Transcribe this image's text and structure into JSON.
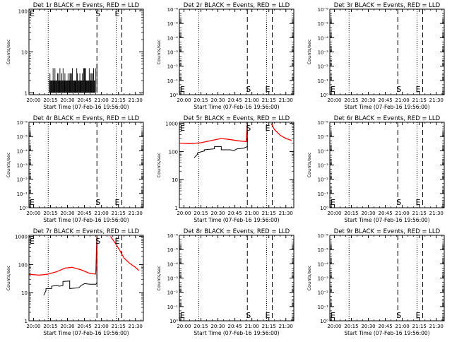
{
  "chart_data": [
    {
      "type": "line",
      "title": "Det 1r BLACK = Events, RED = LLD",
      "xlabel": "Start Time (07-Feb-16 19:56:00)",
      "ylabel": "Counts/sec",
      "xlim": [
        "19:56",
        "21:37"
      ],
      "x_ticks": [
        "20:00",
        "20:15",
        "20:30",
        "20:45",
        "21:00",
        "21:15",
        "21:30"
      ],
      "yscale": "log",
      "ylim": [
        0.9,
        110
      ],
      "y_ticks": [
        {
          "v": 1,
          "label": "1"
        },
        {
          "v": 10,
          "label": "10"
        },
        {
          "v": 100,
          "label": "100"
        }
      ],
      "markers": [
        {
          "label": "E",
          "time": "19:56",
          "style": "dotted"
        },
        {
          "label": "",
          "time": "20:13",
          "style": "dotted"
        },
        {
          "label": "S",
          "time": "20:56",
          "style": "dashed"
        },
        {
          "label": "E",
          "time": "21:13",
          "style": "dotted"
        },
        {
          "label": "",
          "time": "21:18",
          "style": "dashed"
        }
      ],
      "series": [
        {
          "color": "#000000",
          "style": "spiky",
          "x": [
            "20:14",
            "20:25",
            "20:40",
            "20:55",
            "20:56"
          ],
          "y": [
            2,
            2.5,
            2,
            2.5,
            5
          ],
          "spike_lo": 1,
          "spike_hi": 4
        }
      ]
    },
    {
      "type": "line",
      "title": "Det 2r BLACK = Events, RED = LLD",
      "xlabel": "Start Time (07-Feb-16 19:56:00)",
      "ylabel": "Counts/sec",
      "xlim": [
        "19:56",
        "21:37"
      ],
      "x_ticks": [
        "20:00",
        "20:15",
        "20:30",
        "20:45",
        "21:00",
        "21:15",
        "21:30"
      ],
      "yscale": "log",
      "ylim": [
        1,
        1e-06
      ],
      "y_ticks": [
        {
          "v": 1,
          "label": "10⁰"
        },
        {
          "v": 0.1,
          "label": "10⁻¹"
        },
        {
          "v": 0.01,
          "label": "10⁻²"
        },
        {
          "v": 0.001,
          "label": "10⁻³"
        },
        {
          "v": 0.0001,
          "label": "10⁻⁴"
        },
        {
          "v": 1e-05,
          "label": "10⁻⁵"
        },
        {
          "v": 1e-06,
          "label": "10⁻⁶"
        }
      ],
      "markers": [
        {
          "label": "E",
          "time": "19:56",
          "style": "dotted"
        },
        {
          "label": "",
          "time": "20:13",
          "style": "dotted"
        },
        {
          "label": "S",
          "time": "20:56",
          "style": "dashed"
        },
        {
          "label": "E",
          "time": "21:13",
          "style": "dotted"
        },
        {
          "label": "",
          "time": "21:18",
          "style": "dashed"
        }
      ],
      "series": []
    },
    {
      "type": "line",
      "title": "Det 3r BLACK = Events, RED = LLD",
      "xlabel": "Start Time (07-Feb-16 19:56:00)",
      "ylabel": "Counts/sec",
      "xlim": [
        "19:56",
        "21:37"
      ],
      "x_ticks": [
        "20:00",
        "20:15",
        "20:30",
        "20:45",
        "21:00",
        "21:15",
        "21:30"
      ],
      "yscale": "log",
      "ylim": [
        1,
        1e-06
      ],
      "y_ticks": [
        {
          "v": 1,
          "label": "10⁰"
        },
        {
          "v": 0.1,
          "label": "10⁻¹"
        },
        {
          "v": 0.01,
          "label": "10⁻²"
        },
        {
          "v": 0.001,
          "label": "10⁻³"
        },
        {
          "v": 0.0001,
          "label": "10⁻⁴"
        },
        {
          "v": 1e-05,
          "label": "10⁻⁵"
        },
        {
          "v": 1e-06,
          "label": "10⁻⁶"
        }
      ],
      "markers": [
        {
          "label": "E",
          "time": "19:56",
          "style": "dotted"
        },
        {
          "label": "",
          "time": "20:13",
          "style": "dotted"
        },
        {
          "label": "S",
          "time": "20:56",
          "style": "dashed"
        },
        {
          "label": "E",
          "time": "21:13",
          "style": "dotted"
        },
        {
          "label": "",
          "time": "21:18",
          "style": "dashed"
        }
      ],
      "series": []
    },
    {
      "type": "line",
      "title": "Det 4r BLACK = Events, RED = LLD",
      "xlabel": "Start Time (07-Feb-16 19:56:00)",
      "ylabel": "Counts/sec",
      "xlim": [
        "19:56",
        "21:37"
      ],
      "x_ticks": [
        "20:00",
        "20:15",
        "20:30",
        "20:45",
        "21:00",
        "21:15",
        "21:30"
      ],
      "yscale": "log",
      "ylim": [
        1,
        1e-06
      ],
      "y_ticks": [
        {
          "v": 1,
          "label": "10⁰"
        },
        {
          "v": 0.1,
          "label": "10⁻¹"
        },
        {
          "v": 0.01,
          "label": "10⁻²"
        },
        {
          "v": 0.001,
          "label": "10⁻³"
        },
        {
          "v": 0.0001,
          "label": "10⁻⁴"
        },
        {
          "v": 1e-05,
          "label": "10⁻⁵"
        },
        {
          "v": 1e-06,
          "label": "10⁻⁶"
        }
      ],
      "markers": [
        {
          "label": "E",
          "time": "19:56",
          "style": "dotted"
        },
        {
          "label": "",
          "time": "20:13",
          "style": "dotted"
        },
        {
          "label": "S",
          "time": "20:56",
          "style": "dashed"
        },
        {
          "label": "E",
          "time": "21:13",
          "style": "dotted"
        },
        {
          "label": "",
          "time": "21:18",
          "style": "dashed"
        }
      ],
      "series": []
    },
    {
      "type": "line",
      "title": "Det 5r BLACK = Events, RED = LLD",
      "xlabel": "Start Time (07-Feb-16 19:56:00)",
      "ylabel": "Counts/sec",
      "xlim": [
        "19:56",
        "21:37"
      ],
      "x_ticks": [
        "20:00",
        "20:15",
        "20:30",
        "20:45",
        "21:00",
        "21:15",
        "21:30"
      ],
      "yscale": "log",
      "ylim": [
        1,
        1100
      ],
      "y_ticks": [
        {
          "v": 1,
          "label": "1"
        },
        {
          "v": 10,
          "label": "10"
        },
        {
          "v": 100,
          "label": "100"
        },
        {
          "v": 1000,
          "label": "1000"
        }
      ],
      "markers": [
        {
          "label": "E",
          "time": "19:56",
          "style": "dotted"
        },
        {
          "label": "",
          "time": "20:13",
          "style": "dotted"
        },
        {
          "label": "S",
          "time": "20:56",
          "style": "dashed"
        },
        {
          "label": "E",
          "time": "21:13",
          "style": "dotted"
        },
        {
          "label": "",
          "time": "21:18",
          "style": "dashed"
        }
      ],
      "series": [
        {
          "color": "#ff0000",
          "style": "line",
          "x": [
            "19:56",
            "20:05",
            "20:15",
            "20:25",
            "20:33",
            "20:40",
            "20:48",
            "20:55",
            "20:56"
          ],
          "y": [
            200,
            190,
            205,
            250,
            290,
            270,
            240,
            225,
            1000
          ]
        },
        {
          "color": "#ff0000",
          "style": "line",
          "x": [
            "21:17",
            "21:20",
            "21:25",
            "21:30",
            "21:35"
          ],
          "y": [
            1000,
            600,
            380,
            290,
            250
          ]
        },
        {
          "color": "#000000",
          "style": "line",
          "x": [
            "20:09",
            "20:12",
            "20:12",
            "20:18",
            "20:18",
            "20:27",
            "20:27",
            "20:33",
            "20:33",
            "20:41",
            "20:44",
            "20:47",
            "20:50",
            "20:53",
            "20:56",
            "20:56"
          ],
          "y": [
            60,
            80,
            90,
            105,
            115,
            125,
            150,
            150,
            115,
            115,
            108,
            125,
            128,
            132,
            150,
            1000
          ]
        }
      ]
    },
    {
      "type": "line",
      "title": "Det 6r BLACK = Events, RED = LLD",
      "xlabel": "Start Time (07-Feb-16 19:56:00)",
      "ylabel": "Counts/sec",
      "xlim": [
        "19:56",
        "21:37"
      ],
      "x_ticks": [
        "20:00",
        "20:15",
        "20:30",
        "20:45",
        "21:00",
        "21:15",
        "21:30"
      ],
      "yscale": "log",
      "ylim": [
        1,
        1e-06
      ],
      "y_ticks": [
        {
          "v": 1,
          "label": "10⁰"
        },
        {
          "v": 0.1,
          "label": "10⁻¹"
        },
        {
          "v": 0.01,
          "label": "10⁻²"
        },
        {
          "v": 0.001,
          "label": "10⁻³"
        },
        {
          "v": 0.0001,
          "label": "10⁻⁴"
        },
        {
          "v": 1e-05,
          "label": "10⁻⁵"
        },
        {
          "v": 1e-06,
          "label": "10⁻⁶"
        }
      ],
      "markers": [
        {
          "label": "E",
          "time": "19:56",
          "style": "dotted"
        },
        {
          "label": "",
          "time": "20:13",
          "style": "dotted"
        },
        {
          "label": "S",
          "time": "20:56",
          "style": "dashed"
        },
        {
          "label": "E",
          "time": "21:13",
          "style": "dotted"
        },
        {
          "label": "",
          "time": "21:18",
          "style": "dashed"
        }
      ],
      "series": []
    },
    {
      "type": "line",
      "title": "Det 7r BLACK = Events, RED = LLD",
      "xlabel": "Start Time (07-Feb-16 19:56:00)",
      "ylabel": "Counts/sec",
      "xlim": [
        "19:56",
        "21:37"
      ],
      "x_ticks": [
        "20:00",
        "20:15",
        "20:30",
        "20:45",
        "21:00",
        "21:15",
        "21:30"
      ],
      "yscale": "log",
      "ylim": [
        1,
        1100
      ],
      "y_ticks": [
        {
          "v": 1,
          "label": "1"
        },
        {
          "v": 10,
          "label": "10"
        },
        {
          "v": 100,
          "label": "100"
        },
        {
          "v": 1000,
          "label": "1000"
        }
      ],
      "markers": [
        {
          "label": "E",
          "time": "19:56",
          "style": "dotted"
        },
        {
          "label": "",
          "time": "20:13",
          "style": "dotted"
        },
        {
          "label": "S",
          "time": "20:56",
          "style": "dashed"
        },
        {
          "label": "E",
          "time": "21:13",
          "style": "dotted"
        },
        {
          "label": "",
          "time": "21:18",
          "style": "dashed"
        }
      ],
      "series": [
        {
          "color": "#ff0000",
          "style": "line",
          "x": [
            "19:56",
            "20:05",
            "20:12",
            "20:20",
            "20:28",
            "20:34",
            "20:42",
            "20:50",
            "20:55",
            "20:56"
          ],
          "y": [
            45,
            42,
            45,
            55,
            75,
            80,
            65,
            48,
            46,
            1000
          ]
        },
        {
          "color": "#ff0000",
          "style": "line",
          "x": [
            "21:08",
            "21:12",
            "21:16",
            "21:20",
            "21:25",
            "21:30",
            "21:33"
          ],
          "y": [
            1000,
            600,
            330,
            170,
            110,
            80,
            62
          ]
        },
        {
          "color": "#000000",
          "style": "line",
          "x": [
            "20:09",
            "20:11",
            "20:11",
            "20:16",
            "20:16",
            "20:20",
            "20:23",
            "20:26",
            "20:26",
            "20:32",
            "20:32",
            "20:40",
            "20:42",
            "20:45",
            "20:50",
            "20:55",
            "20:56",
            "20:56"
          ],
          "y": [
            8,
            12,
            14,
            14,
            17,
            18,
            17,
            18,
            25,
            26,
            14,
            15,
            18,
            21,
            20,
            20,
            22,
            1000
          ]
        }
      ]
    },
    {
      "type": "line",
      "title": "Det 8r BLACK = Events, RED = LLD",
      "xlabel": "Start Time (07-Feb-16 19:56:00)",
      "ylabel": "Counts/sec",
      "xlim": [
        "19:56",
        "21:37"
      ],
      "x_ticks": [
        "20:00",
        "20:15",
        "20:30",
        "20:45",
        "21:00",
        "21:15",
        "21:30"
      ],
      "yscale": "log",
      "ylim": [
        1,
        1e-06
      ],
      "y_ticks": [
        {
          "v": 1,
          "label": "10⁰"
        },
        {
          "v": 0.1,
          "label": "10⁻¹"
        },
        {
          "v": 0.01,
          "label": "10⁻²"
        },
        {
          "v": 0.001,
          "label": "10⁻³"
        },
        {
          "v": 0.0001,
          "label": "10⁻⁴"
        },
        {
          "v": 1e-05,
          "label": "10⁻⁵"
        },
        {
          "v": 1e-06,
          "label": "10⁻⁶"
        }
      ],
      "markers": [
        {
          "label": "E",
          "time": "19:56",
          "style": "dotted"
        },
        {
          "label": "",
          "time": "20:13",
          "style": "dotted"
        },
        {
          "label": "S",
          "time": "20:56",
          "style": "dashed"
        },
        {
          "label": "E",
          "time": "21:13",
          "style": "dotted"
        },
        {
          "label": "",
          "time": "21:18",
          "style": "dashed"
        }
      ],
      "series": []
    },
    {
      "type": "line",
      "title": "Det 9r BLACK = Events, RED = LLD",
      "xlabel": "Start Time (07-Feb-16 19:56:00)",
      "ylabel": "Counts/sec",
      "xlim": [
        "19:56",
        "21:37"
      ],
      "x_ticks": [
        "20:00",
        "20:15",
        "20:30",
        "20:45",
        "21:00",
        "21:15",
        "21:30"
      ],
      "yscale": "log",
      "ylim": [
        1,
        1e-06
      ],
      "y_ticks": [
        {
          "v": 1,
          "label": "10⁰"
        },
        {
          "v": 0.1,
          "label": "10⁻¹"
        },
        {
          "v": 0.01,
          "label": "10⁻²"
        },
        {
          "v": 0.001,
          "label": "10⁻³"
        },
        {
          "v": 0.0001,
          "label": "10⁻⁴"
        },
        {
          "v": 1e-05,
          "label": "10⁻⁵"
        },
        {
          "v": 1e-06,
          "label": "10⁻⁶"
        }
      ],
      "markers": [
        {
          "label": "E",
          "time": "19:56",
          "style": "dotted"
        },
        {
          "label": "",
          "time": "20:13",
          "style": "dotted"
        },
        {
          "label": "S",
          "time": "20:56",
          "style": "dashed"
        },
        {
          "label": "E",
          "time": "21:13",
          "style": "dotted"
        },
        {
          "label": "",
          "time": "21:18",
          "style": "dashed"
        }
      ],
      "series": []
    }
  ]
}
